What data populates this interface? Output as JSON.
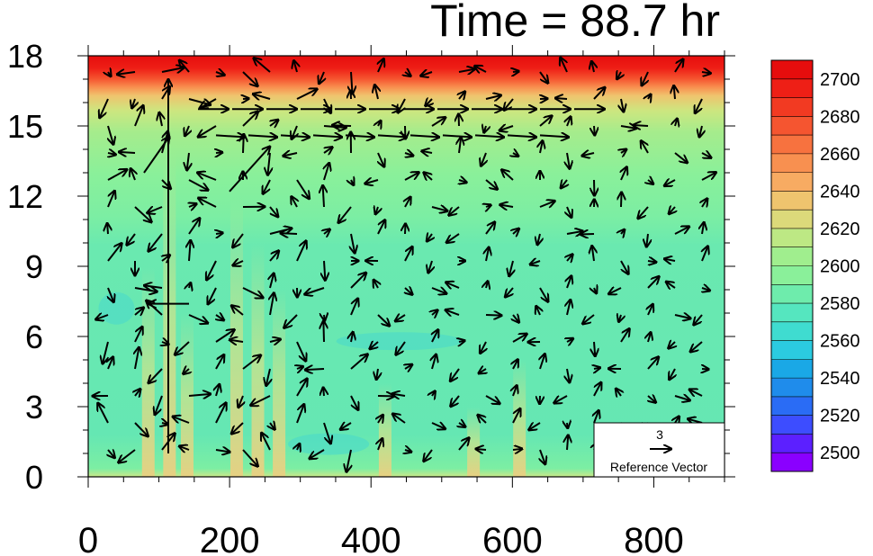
{
  "chart_data": {
    "type": "heatmap",
    "title": "Time = 88.7 hr",
    "xlim": [
      0,
      900
    ],
    "ylim": [
      0,
      18
    ],
    "x_ticks": [
      "0",
      "200",
      "400",
      "600",
      "800"
    ],
    "x_tick_values": [
      0,
      200,
      400,
      600,
      800
    ],
    "y_ticks": [
      "0",
      "3",
      "6",
      "9",
      "12",
      "15",
      "18"
    ],
    "y_tick_values": [
      0,
      3,
      6,
      9,
      12,
      15,
      18
    ],
    "colorbar": {
      "levels": [
        2500,
        2510,
        2520,
        2530,
        2540,
        2550,
        2560,
        2570,
        2580,
        2590,
        2600,
        2610,
        2620,
        2630,
        2640,
        2650,
        2660,
        2670,
        2680,
        2690,
        2700,
        2710
      ],
      "labels": [
        "2500",
        "2520",
        "2540",
        "2560",
        "2580",
        "2600",
        "2620",
        "2640",
        "2660",
        "2680",
        "2700"
      ],
      "colors": [
        "#8a00ff",
        "#5c20ff",
        "#3d4dff",
        "#2a6cf5",
        "#1f8ceb",
        "#1aa8e6",
        "#2bcbe0",
        "#3fdcd0",
        "#55e6bf",
        "#6eecac",
        "#8af09a",
        "#a0ee8e",
        "#bde884",
        "#dcd97a",
        "#efc46e",
        "#f7ab62",
        "#f89050",
        "#f7723f",
        "#f55530",
        "#f23a22",
        "#ee1f16",
        "#e60d0d"
      ]
    },
    "reference_vector": {
      "magnitude": "3",
      "label": "Reference Vector"
    },
    "wind_vectors": "dense field of black wind arrows over the domain; strongest eastward flow near 14.5-15.8 (x 150-680)"
  }
}
